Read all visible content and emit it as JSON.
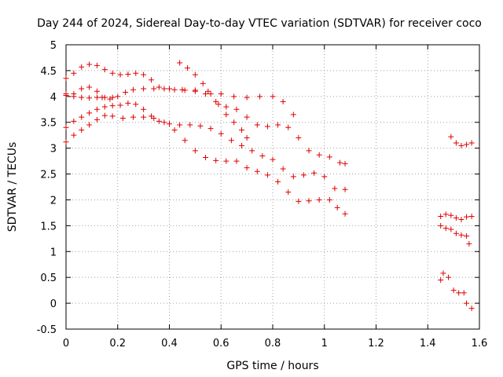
{
  "chart_data": {
    "type": "scatter",
    "title": "Day 244 of 2024, Sidereal Day-to-day VTEC variation (SDTVAR) for receiver coco",
    "xlabel": "GPS time / hours",
    "ylabel": "SDTVAR / TECUs",
    "xlim": [
      0,
      1.6
    ],
    "ylim": [
      -0.5,
      5
    ],
    "xticks": [
      "0",
      "0.2",
      "0.4",
      "0.6",
      "0.8",
      "1",
      "1.2",
      "1.4",
      "1.6"
    ],
    "yticks": [
      "-0.5",
      "0",
      "0.5",
      "1",
      "1.5",
      "2",
      "2.5",
      "3",
      "3.5",
      "4",
      "4.5",
      "5"
    ],
    "grid": true,
    "marker": "+",
    "color": "#e00000",
    "series": [
      {
        "name": "trace-1",
        "points": [
          [
            0.0,
            4.35
          ],
          [
            0.03,
            4.45
          ],
          [
            0.06,
            4.57
          ],
          [
            0.09,
            4.62
          ],
          [
            0.12,
            4.6
          ],
          [
            0.15,
            4.52
          ],
          [
            0.18,
            4.45
          ],
          [
            0.21,
            4.42
          ],
          [
            0.24,
            4.43
          ],
          [
            0.27,
            4.45
          ],
          [
            0.3,
            4.42
          ],
          [
            0.33,
            4.32
          ],
          [
            0.36,
            4.18
          ],
          [
            0.4,
            4.15
          ],
          [
            0.45,
            4.13
          ],
          [
            0.5,
            4.12
          ],
          [
            0.55,
            4.1
          ],
          [
            0.6,
            4.05
          ],
          [
            0.65,
            4.0
          ],
          [
            0.7,
            3.98
          ],
          [
            0.75,
            4.0
          ],
          [
            0.8,
            4.0
          ],
          [
            0.84,
            3.9
          ],
          [
            0.88,
            3.65
          ]
        ]
      },
      {
        "name": "trace-2",
        "points": [
          [
            0.0,
            4.05
          ],
          [
            0.03,
            4.05
          ],
          [
            0.06,
            4.15
          ],
          [
            0.09,
            4.18
          ],
          [
            0.12,
            4.1
          ],
          [
            0.14,
            3.98
          ],
          [
            0.17,
            3.95
          ],
          [
            0.2,
            4.0
          ],
          [
            0.23,
            4.08
          ],
          [
            0.26,
            4.13
          ],
          [
            0.3,
            4.15
          ],
          [
            0.34,
            4.15
          ],
          [
            0.38,
            4.15
          ],
          [
            0.42,
            4.13
          ],
          [
            0.46,
            4.12
          ],
          [
            0.5,
            4.1
          ],
          [
            0.54,
            4.05
          ],
          [
            0.58,
            3.9
          ],
          [
            0.62,
            3.8
          ],
          [
            0.66,
            3.75
          ],
          [
            0.7,
            3.6
          ],
          [
            0.74,
            3.45
          ],
          [
            0.78,
            3.42
          ],
          [
            0.82,
            3.45
          ],
          [
            0.86,
            3.4
          ],
          [
            0.9,
            3.2
          ],
          [
            0.94,
            2.95
          ],
          [
            0.98,
            2.87
          ],
          [
            1.02,
            2.83
          ],
          [
            1.06,
            2.72
          ],
          [
            1.08,
            2.7
          ]
        ]
      },
      {
        "name": "trace-3",
        "points": [
          [
            0.0,
            4.02
          ],
          [
            0.03,
            4.0
          ],
          [
            0.06,
            3.98
          ],
          [
            0.09,
            3.97
          ],
          [
            0.12,
            3.98
          ],
          [
            0.15,
            3.98
          ],
          [
            0.18,
            3.98
          ]
        ]
      },
      {
        "name": "trace-4",
        "points": [
          [
            0.0,
            3.4
          ],
          [
            0.03,
            3.52
          ],
          [
            0.06,
            3.6
          ],
          [
            0.09,
            3.68
          ],
          [
            0.12,
            3.75
          ],
          [
            0.15,
            3.8
          ],
          [
            0.18,
            3.82
          ],
          [
            0.21,
            3.83
          ],
          [
            0.24,
            3.87
          ],
          [
            0.27,
            3.85
          ],
          [
            0.3,
            3.75
          ],
          [
            0.33,
            3.62
          ],
          [
            0.36,
            3.52
          ],
          [
            0.4,
            3.47
          ],
          [
            0.44,
            3.45
          ],
          [
            0.48,
            3.45
          ],
          [
            0.52,
            3.43
          ],
          [
            0.56,
            3.38
          ],
          [
            0.6,
            3.28
          ],
          [
            0.64,
            3.15
          ],
          [
            0.68,
            3.05
          ],
          [
            0.72,
            2.95
          ],
          [
            0.76,
            2.85
          ],
          [
            0.8,
            2.78
          ],
          [
            0.84,
            2.6
          ],
          [
            0.88,
            2.45
          ],
          [
            0.92,
            2.48
          ],
          [
            0.96,
            2.52
          ],
          [
            1.0,
            2.45
          ],
          [
            1.04,
            2.22
          ],
          [
            1.08,
            2.2
          ]
        ]
      },
      {
        "name": "trace-5",
        "points": [
          [
            0.0,
            3.12
          ],
          [
            0.03,
            3.25
          ],
          [
            0.06,
            3.35
          ],
          [
            0.09,
            3.45
          ],
          [
            0.12,
            3.55
          ],
          [
            0.15,
            3.63
          ],
          [
            0.18,
            3.62
          ],
          [
            0.22,
            3.58
          ],
          [
            0.26,
            3.6
          ],
          [
            0.3,
            3.6
          ],
          [
            0.34,
            3.58
          ],
          [
            0.38,
            3.5
          ],
          [
            0.42,
            3.35
          ],
          [
            0.46,
            3.15
          ],
          [
            0.5,
            2.95
          ],
          [
            0.54,
            2.82
          ],
          [
            0.58,
            2.76
          ],
          [
            0.62,
            2.75
          ],
          [
            0.66,
            2.75
          ],
          [
            0.7,
            2.62
          ],
          [
            0.74,
            2.55
          ],
          [
            0.78,
            2.48
          ],
          [
            0.82,
            2.35
          ],
          [
            0.86,
            2.15
          ],
          [
            0.9,
            1.97
          ],
          [
            0.94,
            1.98
          ],
          [
            0.98,
            2.0
          ],
          [
            1.02,
            2.0
          ],
          [
            1.05,
            1.85
          ],
          [
            1.08,
            1.73
          ]
        ]
      },
      {
        "name": "trace-6",
        "points": [
          [
            0.44,
            4.65
          ],
          [
            0.47,
            4.55
          ],
          [
            0.5,
            4.42
          ],
          [
            0.53,
            4.25
          ],
          [
            0.56,
            4.05
          ],
          [
            0.59,
            3.85
          ],
          [
            0.62,
            3.65
          ],
          [
            0.65,
            3.5
          ],
          [
            0.68,
            3.35
          ],
          [
            0.7,
            3.2
          ]
        ]
      },
      {
        "name": "trace-7",
        "points": [
          [
            1.49,
            3.22
          ],
          [
            1.51,
            3.1
          ],
          [
            1.53,
            3.05
          ],
          [
            1.55,
            3.07
          ],
          [
            1.57,
            3.1
          ]
        ]
      },
      {
        "name": "trace-8",
        "points": [
          [
            1.45,
            1.68
          ],
          [
            1.47,
            1.72
          ],
          [
            1.49,
            1.7
          ],
          [
            1.51,
            1.65
          ],
          [
            1.53,
            1.62
          ],
          [
            1.55,
            1.67
          ],
          [
            1.57,
            1.68
          ]
        ]
      },
      {
        "name": "trace-9",
        "points": [
          [
            1.45,
            1.5
          ],
          [
            1.47,
            1.45
          ],
          [
            1.49,
            1.43
          ],
          [
            1.51,
            1.35
          ],
          [
            1.53,
            1.32
          ],
          [
            1.55,
            1.3
          ],
          [
            1.56,
            1.15
          ]
        ]
      },
      {
        "name": "trace-10",
        "points": [
          [
            1.45,
            0.45
          ],
          [
            1.46,
            0.58
          ],
          [
            1.48,
            0.5
          ],
          [
            1.5,
            0.25
          ],
          [
            1.52,
            0.2
          ],
          [
            1.54,
            0.2
          ],
          [
            1.55,
            0.0
          ],
          [
            1.57,
            -0.1
          ]
        ]
      }
    ]
  }
}
